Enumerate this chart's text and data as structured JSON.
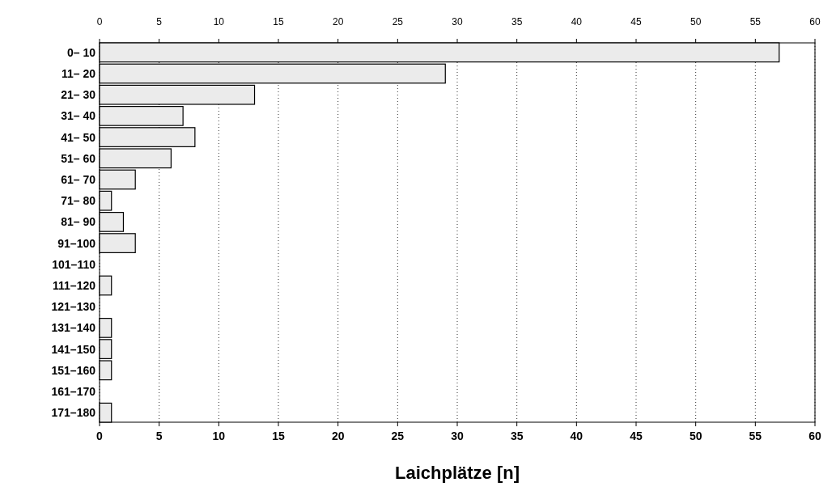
{
  "chart_data": {
    "type": "bar",
    "orientation": "horizontal",
    "xlabel": "Laichplätze [n]",
    "categories": [
      "0– 10",
      "11– 20",
      "21– 30",
      "31– 40",
      "41– 50",
      "51– 60",
      "61– 70",
      "71– 80",
      "81– 90",
      "91–100",
      "101–110",
      "111–120",
      "121–130",
      "131–140",
      "141–150",
      "151–160",
      "161–170",
      "171–180"
    ],
    "values": [
      57,
      29,
      13,
      7,
      8,
      6,
      3,
      1,
      2,
      3,
      0,
      1,
      0,
      1,
      1,
      1,
      0,
      1
    ],
    "color": "#ebebeb",
    "xlim": [
      0,
      60
    ],
    "xticks": [
      0,
      5,
      10,
      15,
      20,
      25,
      30,
      35,
      40,
      45,
      50,
      55,
      60
    ],
    "x2lim": [
      0,
      60
    ],
    "x2ticks": [
      0,
      5,
      10,
      15,
      20,
      25,
      30,
      35,
      40,
      45,
      50,
      55,
      60
    ],
    "grid": "x"
  }
}
